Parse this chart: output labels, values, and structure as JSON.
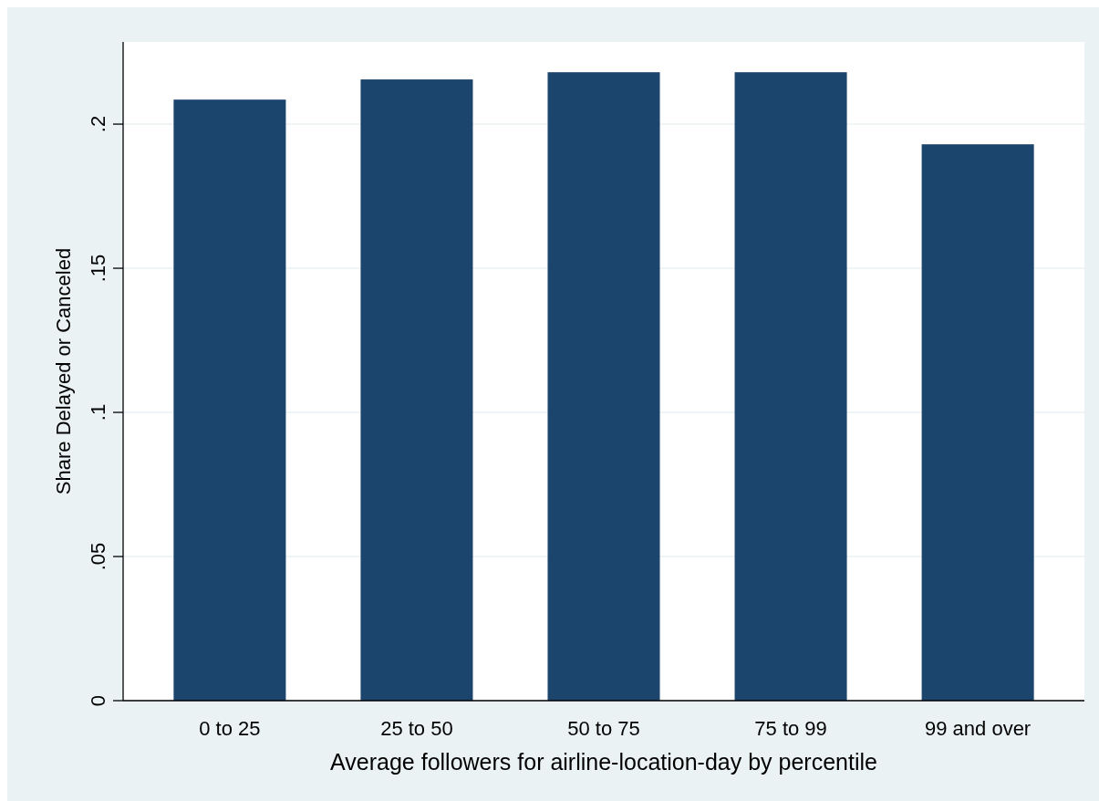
{
  "chart_data": {
    "type": "bar",
    "xlabel": "Average followers for airline-location-day by percentile",
    "ylabel": "Share Delayed or Canceled",
    "categories": [
      "0 to 25",
      "25 to 50",
      "50 to 75",
      "75 to 99",
      "99 and over"
    ],
    "values": [
      0.2085,
      0.2155,
      0.218,
      0.218,
      0.193
    ],
    "color": "#1c456d",
    "ylim": [
      0,
      0.2285
    ],
    "yticks": [
      {
        "value": 0,
        "label": "0"
      },
      {
        "value": 0.05,
        "label": ".05"
      },
      {
        "value": 0.1,
        "label": ".1"
      },
      {
        "value": 0.15,
        "label": ".15"
      },
      {
        "value": 0.2,
        "label": ".2"
      }
    ],
    "grid": "y"
  }
}
